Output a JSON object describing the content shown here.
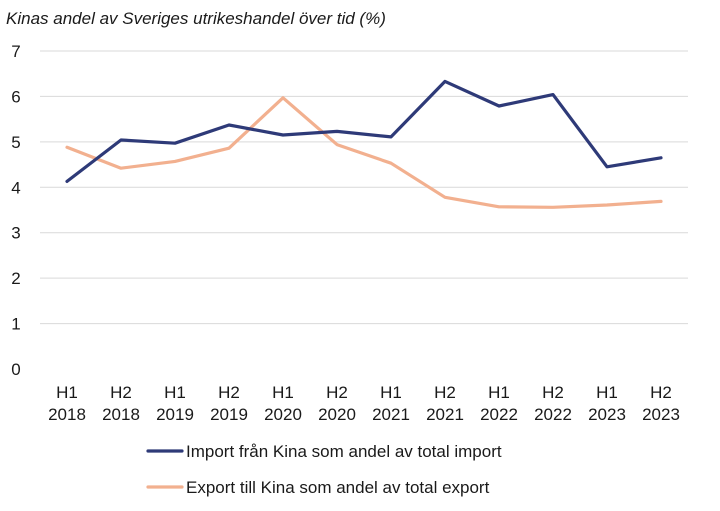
{
  "chart_data": {
    "type": "line",
    "title": "Kinas andel av Sveriges utrikeshandel över tid (%)",
    "categories": [
      [
        "H1",
        "2018"
      ],
      [
        "H2",
        "2018"
      ],
      [
        "H1",
        "2019"
      ],
      [
        "H2",
        "2019"
      ],
      [
        "H1",
        "2020"
      ],
      [
        "H2",
        "2020"
      ],
      [
        "H1",
        "2021"
      ],
      [
        "H2",
        "2021"
      ],
      [
        "H1",
        "2022"
      ],
      [
        "H2",
        "2022"
      ],
      [
        "H1",
        "2023"
      ],
      [
        "H2",
        "2023"
      ]
    ],
    "ylim": [
      0,
      7
    ],
    "yticks": [
      "0",
      "1",
      "2",
      "3",
      "4",
      "5",
      "6",
      "7"
    ],
    "grid": true,
    "legend_position": "bottom",
    "series": [
      {
        "name": "Import från Kina som andel av total import",
        "color": "#2e3a78",
        "values": [
          4.13,
          5.04,
          4.97,
          5.37,
          5.15,
          5.23,
          5.11,
          6.33,
          5.79,
          6.04,
          4.45,
          4.65
        ]
      },
      {
        "name": "Export till Kina som andel av total export",
        "color": "#f2b08f",
        "values": [
          4.88,
          4.42,
          4.57,
          4.86,
          5.97,
          4.94,
          4.53,
          3.78,
          3.57,
          3.56,
          3.61,
          3.69
        ]
      }
    ]
  }
}
